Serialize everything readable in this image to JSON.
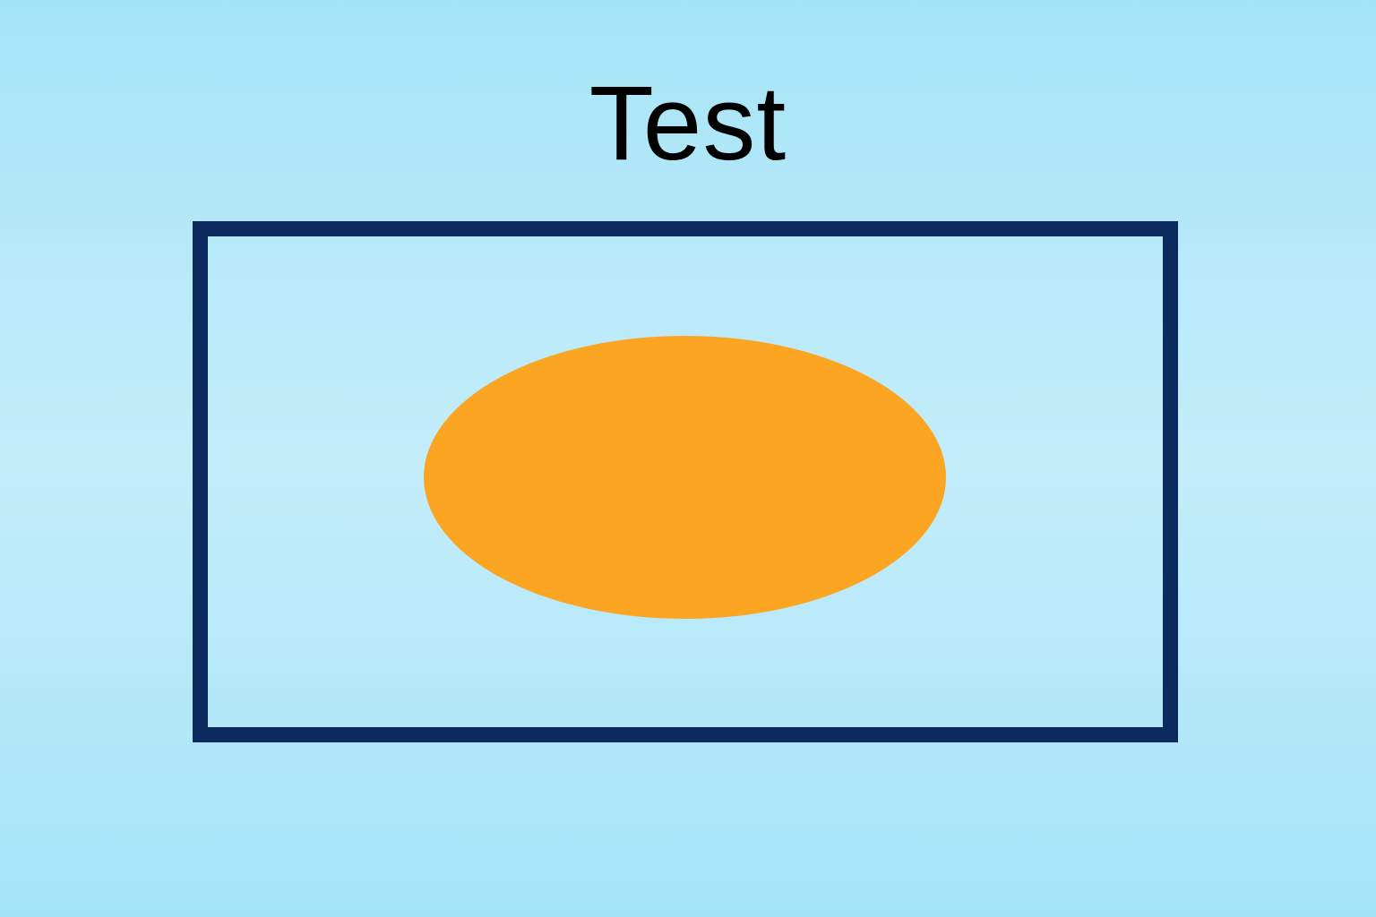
{
  "title": "Test",
  "colors": {
    "background": "#a5e4f6",
    "frame_border": "#0b2a5d",
    "ellipse_fill": "#fca523",
    "title_text": "#000000"
  }
}
